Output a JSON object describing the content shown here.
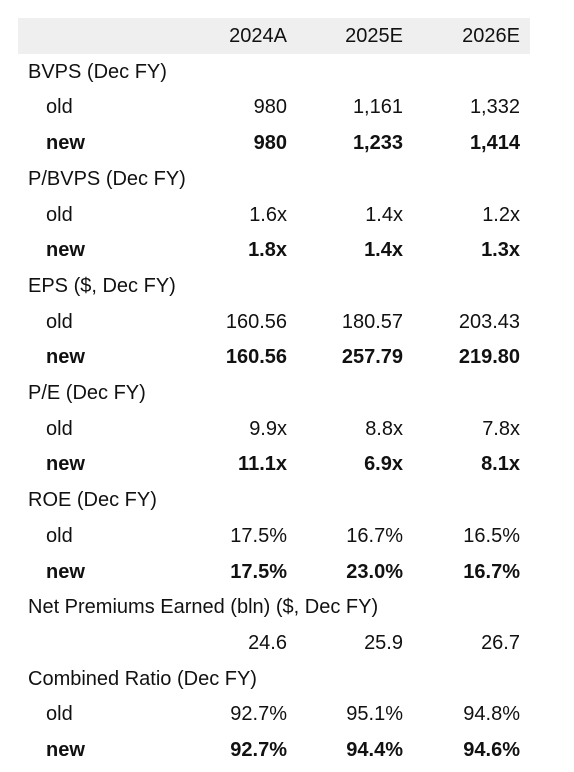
{
  "header": {
    "columns": [
      "2024A",
      "2025E",
      "2026E"
    ]
  },
  "sections": [
    {
      "title": "BVPS (Dec FY)",
      "rows": [
        {
          "label": "old",
          "values": [
            "980",
            "1,161",
            "1,332"
          ]
        },
        {
          "label": "new",
          "values": [
            "980",
            "1,233",
            "1,414"
          ],
          "bold": true
        }
      ]
    },
    {
      "title": "P/BVPS (Dec FY)",
      "rows": [
        {
          "label": "old",
          "values": [
            "1.6x",
            "1.4x",
            "1.2x"
          ]
        },
        {
          "label": "new",
          "values": [
            "1.8x",
            "1.4x",
            "1.3x"
          ],
          "bold": true
        }
      ]
    },
    {
      "title": "EPS ($, Dec FY)",
      "rows": [
        {
          "label": "old",
          "values": [
            "160.56",
            "180.57",
            "203.43"
          ]
        },
        {
          "label": "new",
          "values": [
            "160.56",
            "257.79",
            "219.80"
          ],
          "bold": true
        }
      ]
    },
    {
      "title": "P/E (Dec FY)",
      "rows": [
        {
          "label": "old",
          "values": [
            "9.9x",
            "8.8x",
            "7.8x"
          ]
        },
        {
          "label": "new",
          "values": [
            "11.1x",
            "6.9x",
            "8.1x"
          ],
          "bold": true
        }
      ]
    },
    {
      "title": "ROE (Dec FY)",
      "rows": [
        {
          "label": "old",
          "values": [
            "17.5%",
            "16.7%",
            "16.5%"
          ]
        },
        {
          "label": "new",
          "values": [
            "17.5%",
            "23.0%",
            "16.7%"
          ],
          "bold": true
        }
      ]
    },
    {
      "title": "Net Premiums Earned (bln) ($, Dec FY)",
      "rows": [
        {
          "values": [
            "24.6",
            "25.9",
            "26.7"
          ]
        }
      ]
    },
    {
      "title": "Combined Ratio (Dec FY)",
      "rows": [
        {
          "label": "old",
          "values": [
            "92.7%",
            "95.1%",
            "94.8%"
          ]
        },
        {
          "label": "new",
          "values": [
            "92.7%",
            "94.4%",
            "94.6%"
          ],
          "bold": true
        }
      ]
    }
  ]
}
